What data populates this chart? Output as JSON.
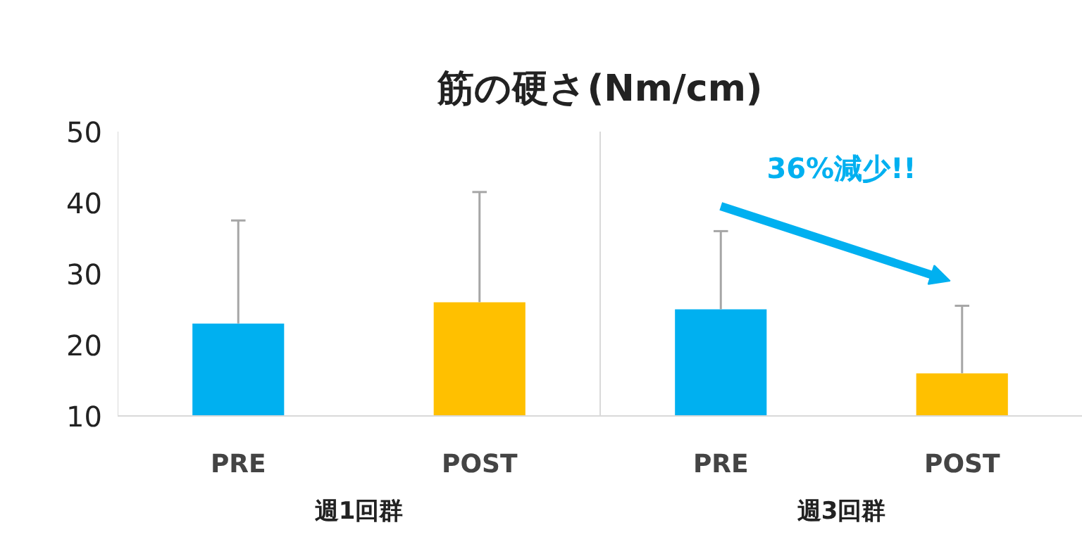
{
  "chart_data": {
    "type": "bar",
    "title": "筋の硬さ(Nm/cm)",
    "categories": [
      "PRE",
      "POST",
      "PRE",
      "POST"
    ],
    "values": [
      23,
      26,
      25,
      16
    ],
    "colors": [
      "#00b0f0",
      "#ffc000",
      "#00b0f0",
      "#ffc000"
    ],
    "errors": [
      [
        23,
        37.5
      ],
      [
        26,
        41.5
      ],
      [
        25,
        36
      ],
      [
        16,
        25.5
      ]
    ],
    "ylim": [
      10,
      50
    ],
    "yticks": [
      10,
      20,
      30,
      40,
      50
    ],
    "grid": false,
    "annotations": [
      "36%減少!!",
      "週1回群",
      "週3回群"
    ]
  }
}
